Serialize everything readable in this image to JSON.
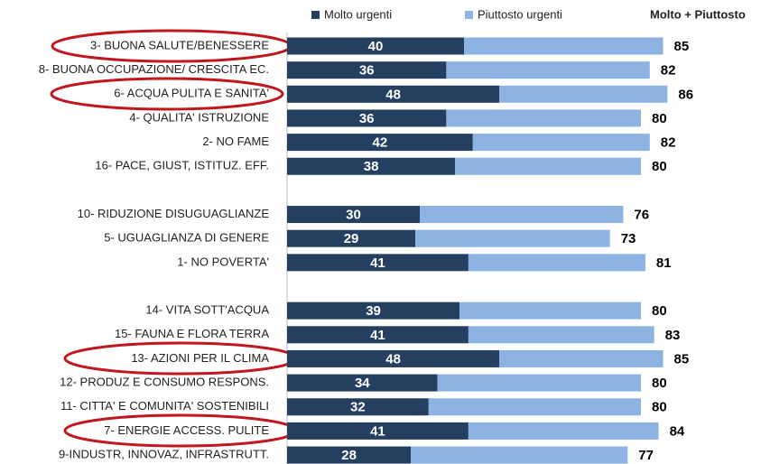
{
  "chart_data": {
    "type": "stacked-barh",
    "categories": [
      "3- BUONA SALUTE/BENESSERE",
      "8- BUONA OCCUPAZIONE/ CRESCITA EC.",
      "6- ACQUA PULITA E SANITA'",
      "4- QUALITA' ISTRUZIONE",
      "2- NO FAME",
      "16- PACE, GIUST, ISTITUZ. EFF.",
      null,
      "10- RIDUZIONE DISUGUAGLIANZE",
      "5- UGUAGLIANZA DI GENERE",
      "1- NO POVERTA'",
      null,
      "14- VITA SOTT'ACQUA",
      "15- FAUNA E FLORA TERRA",
      "13- AZIONI PER IL CLIMA",
      "12- PRODUZ E CONSUMO RESPONS.",
      "11- CITTA' E COMUNITA' SOSTENIBILI",
      "7- ENERGIE ACCESS. PULITE",
      "9-INDUSTR, INNOVAZ, INFRASTRUTT."
    ],
    "series": [
      {
        "name": "Molto urgenti",
        "color": "#243f60",
        "values": [
          40,
          36,
          48,
          36,
          42,
          38,
          null,
          30,
          29,
          41,
          null,
          39,
          41,
          48,
          34,
          32,
          41,
          28
        ]
      },
      {
        "name": "Piuttosto urgenti",
        "color": "#8db3e2",
        "values": [
          45,
          46,
          38,
          44,
          40,
          42,
          null,
          46,
          44,
          40,
          null,
          41,
          42,
          37,
          46,
          48,
          43,
          49
        ]
      }
    ],
    "totals_name": "Molto + Piuttosto",
    "totals": [
      85,
      82,
      86,
      80,
      82,
      80,
      null,
      76,
      73,
      81,
      null,
      80,
      83,
      85,
      80,
      80,
      84,
      77
    ]
  }
}
